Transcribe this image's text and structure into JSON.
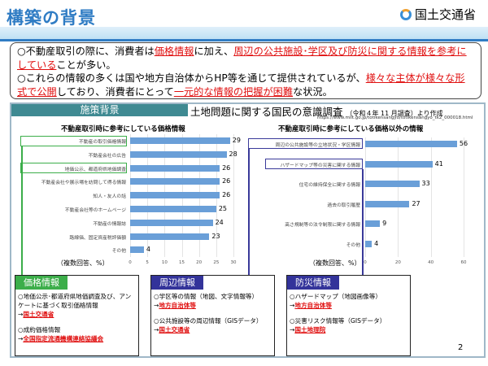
{
  "header": {
    "title": "構築の背景",
    "ministry": "国土交通省"
  },
  "intro": {
    "p1": [
      "○不動産取引の際に、消費者は",
      "価格情報",
      "に加え、",
      "周辺の公共施設･学区及び防災に関する情報を参考にしている",
      "ことが多い。"
    ],
    "p2": [
      "○これらの情報の多くは国や地方自治体からHP等を通じて提供されているが、",
      "様々な主体が様々な形式で公開",
      "しており、消費者にとって",
      "一元的な情報の把握が困難",
      "な状況。"
    ]
  },
  "panel": {
    "header": "施策背景",
    "survey_title": "土地問題に関する国民の意識調査",
    "survey_note": "（令和４年 11 月調査）より作成",
    "url": "https://www.mlit.go.jp/totikensangyo/totikensangyo_tk2_000018.html"
  },
  "chart_data": [
    {
      "type": "bar",
      "title": "不動産取引時に参考にしている価格情報",
      "categories": [
        "不動産の取引価格情報",
        "不動産会社の広告",
        "地価公示、都道府県地価調査",
        "不動産会社や展示場を訪問して得る情報",
        "知人・友人の話",
        "不動産会社等のホームページ",
        "不動産の情報誌",
        "路線価、固定資産税評価額",
        "その他"
      ],
      "values": [
        29,
        28,
        26,
        26,
        26,
        25,
        24,
        23,
        4
      ],
      "xlim": [
        0,
        30
      ],
      "ticks": [
        0,
        5,
        10,
        15,
        20,
        25,
        30
      ],
      "note": "（複数回答、%）"
    },
    {
      "type": "bar",
      "title": "不動産取引時に参考にしている価格以外の情報",
      "categories": [
        "周辺の公共施設等の立地状況・学区情報",
        "ハザードマップ等の災害に関する情報",
        "住宅の維持保全に関する情報",
        "過去の取引履歴",
        "高さ規制等の法令制限に関する情報",
        "その他"
      ],
      "values": [
        56,
        41,
        33,
        27,
        9,
        4
      ],
      "xlim": [
        0,
        60
      ],
      "ticks": [
        0,
        20,
        40,
        60
      ],
      "note": "（複数回答、%）"
    }
  ],
  "boxes": [
    {
      "title": "価格情報",
      "color": "#3cae4a",
      "items": [
        {
          "text": "○地価公示･都道府県地価調査及び、アンケートに基づく取引価格情報",
          "src": "国土交通省"
        },
        {
          "text": "○成約価格情報",
          "src": "全国指定流通機構連絡協議会"
        }
      ]
    },
    {
      "title": "周辺情報",
      "color": "#33339a",
      "items": [
        {
          "text": "○学区等の情報（地図、文字情報等）",
          "src": "地方自治体等"
        },
        {
          "text": "○公共施設等の周辺情報（GISデータ）",
          "src": "国土交通省"
        }
      ]
    },
    {
      "title": "防災情報",
      "color": "#33339a",
      "items": [
        {
          "text": "○ハザードマップ（地図画像等）",
          "src": "地方自治体等"
        },
        {
          "text": "○災害リスク情報等（GISデータ）",
          "src": "国土地理院"
        }
      ]
    }
  ],
  "page_number": "2"
}
